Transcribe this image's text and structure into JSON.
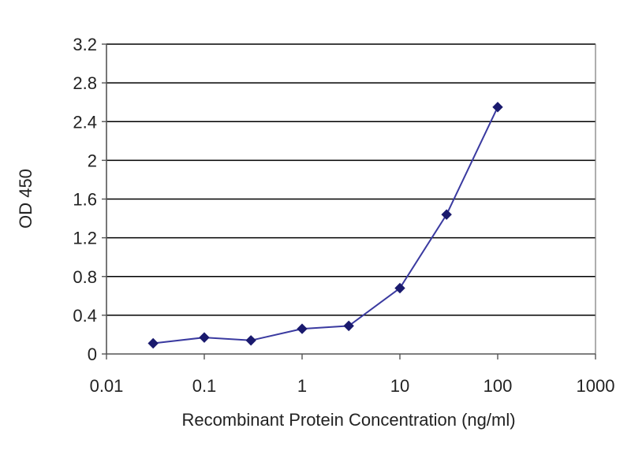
{
  "chart_data": {
    "type": "line",
    "title": "",
    "xlabel": "Recombinant Protein Concentration (ng/ml)",
    "ylabel": "OD 450",
    "x_scale": "log",
    "xlim": [
      0.01,
      1000
    ],
    "ylim": [
      0,
      3.2
    ],
    "x_ticks": [
      "0.01",
      "0.1",
      "1",
      "10",
      "100",
      "1000"
    ],
    "y_ticks": [
      "0",
      "0.4",
      "0.8",
      "1.2",
      "1.6",
      "2",
      "2.4",
      "2.8",
      "3.2"
    ],
    "grid": "horizontal",
    "legend": "none",
    "series": [
      {
        "x": [
          0.03,
          0.1,
          0.3,
          1,
          3,
          10,
          30,
          100
        ],
        "y": [
          0.11,
          0.17,
          0.14,
          0.26,
          0.29,
          0.68,
          1.44,
          2.55
        ],
        "color": "#3a3aa0",
        "marker_color": "#1a1a6e"
      }
    ],
    "colors": {
      "grid": "#000000",
      "axis": "#555555",
      "plot_border": "#777777"
    }
  }
}
